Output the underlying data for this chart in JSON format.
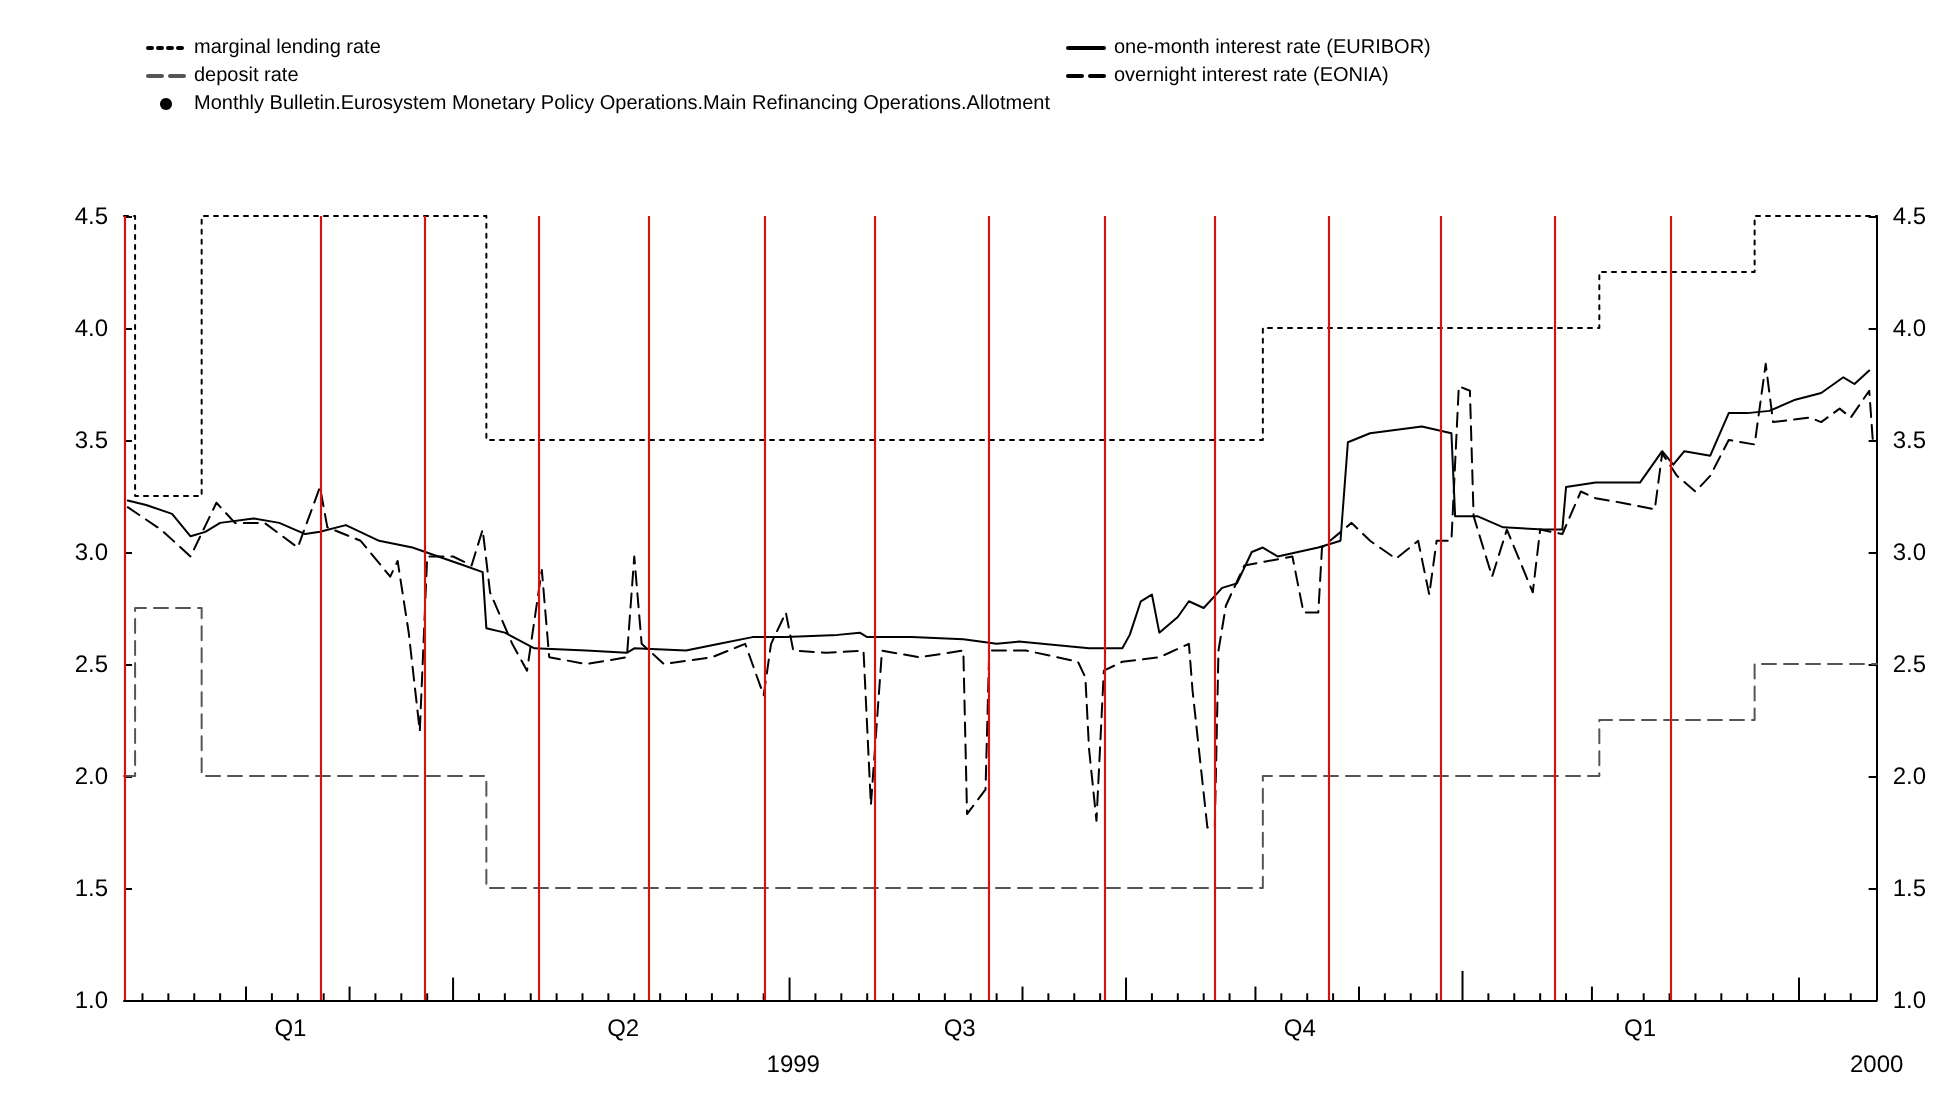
{
  "chart_data": {
    "type": "line",
    "xlim": [
      "1999-01-01",
      "2000-04-19"
    ],
    "xticks": [
      {
        "value": "1999-02-15",
        "label": "Q1"
      },
      {
        "value": "1999-05-16",
        "label": "Q2"
      },
      {
        "value": "1999-08-15",
        "label": "Q3"
      },
      {
        "value": "1999-11-15",
        "label": "Q4"
      },
      {
        "value": "2000-02-15",
        "label": "Q1"
      }
    ],
    "x2lim": [
      "1999-01-01",
      "2000-04-19"
    ],
    "x2ticks": [
      {
        "value": "1999-07-01",
        "label": "1999"
      },
      {
        "value": "2000-04-19",
        "label": "2000"
      }
    ],
    "ylim": [
      1.0,
      4.5
    ],
    "yticks": [
      {
        "value": 1,
        "label": "1.0"
      },
      {
        "value": 1.5,
        "label": "1.5"
      },
      {
        "value": 2,
        "label": "2.0"
      },
      {
        "value": 2.5,
        "label": "2.5"
      },
      {
        "value": 3,
        "label": "3.0"
      },
      {
        "value": 3.5,
        "label": "3.5"
      },
      {
        "value": 4,
        "label": "4.0"
      },
      {
        "value": 4.5,
        "label": "4.5"
      }
    ],
    "y2lim": [
      1.0,
      4.5
    ],
    "y2ticks": [
      {
        "value": 1,
        "label": "1.0"
      },
      {
        "value": 1.5,
        "label": "1.5"
      },
      {
        "value": 2,
        "label": "2.0"
      },
      {
        "value": 2.5,
        "label": "2.5"
      },
      {
        "value": 3,
        "label": "3.0"
      },
      {
        "value": 3.5,
        "label": "3.5"
      },
      {
        "value": 4,
        "label": "4.0"
      },
      {
        "value": 4.5,
        "label": "4.5"
      }
    ],
    "grid": false,
    "legend": "top",
    "series": [
      {
        "name": "marginal lending rate",
        "type": "step",
        "color": "#000000",
        "line_style": "dotted",
        "x": [
          "1999-01-01",
          "1999-01-04",
          "1999-01-22",
          "1999-04-09",
          "1999-11-05",
          "2000-02-04",
          "2000-03-17",
          "2000-04-19"
        ],
        "values": [
          4.5,
          3.25,
          4.5,
          3.5,
          4.0,
          4.25,
          4.5,
          4.5
        ]
      },
      {
        "name": "deposit rate",
        "type": "step",
        "color": "#555555",
        "line_style": "dashed",
        "x": [
          "1999-01-01",
          "1999-01-04",
          "1999-01-22",
          "1999-04-09",
          "1999-11-05",
          "2000-02-04",
          "2000-03-17",
          "2000-04-19"
        ],
        "values": [
          2.0,
          2.75,
          2.0,
          1.5,
          2.0,
          2.25,
          2.5,
          2.5
        ]
      },
      {
        "name": "Monthly Bulletin.Eurosystem Monetary Policy Operations.Main Refinancing Operations.Allotment",
        "type": "bar",
        "color": "#000000",
        "x": [
          "1999-01-06",
          "1999-01-13",
          "1999-01-20",
          "1999-01-27",
          "1999-02-03",
          "1999-02-10",
          "1999-02-17",
          "1999-02-24",
          "1999-03-03",
          "1999-03-10",
          "1999-03-17",
          "1999-03-24",
          "1999-03-31",
          "1999-04-07",
          "1999-04-14",
          "1999-04-21",
          "1999-04-28",
          "1999-05-05",
          "1999-05-12",
          "1999-05-19",
          "1999-05-26",
          "1999-06-02",
          "1999-06-09",
          "1999-06-16",
          "1999-06-23",
          "1999-06-30",
          "1999-07-07",
          "1999-07-14",
          "1999-07-21",
          "1999-07-28",
          "1999-08-04",
          "1999-08-11",
          "1999-08-18",
          "1999-08-25",
          "1999-09-01",
          "1999-09-08",
          "1999-09-15",
          "1999-09-22",
          "1999-09-29",
          "1999-10-06",
          "1999-10-13",
          "1999-10-20",
          "1999-10-27",
          "1999-11-03",
          "1999-11-10",
          "1999-11-17",
          "1999-11-24",
          "1999-12-01",
          "1999-12-08",
          "1999-12-15",
          "1999-12-22",
          "1999-12-29",
          "2000-01-05",
          "2000-01-12",
          "2000-01-19",
          "2000-01-26",
          "2000-02-02",
          "2000-02-09",
          "2000-02-16",
          "2000-02-23",
          "2000-03-01",
          "2000-03-08",
          "2000-03-15",
          "2000-03-22",
          "2000-03-29",
          "2000-04-05",
          "2000-04-12"
        ],
        "values": [
          1.03,
          1.03,
          1.03,
          1.03,
          1.06,
          1.03,
          1.03,
          1.03,
          1.06,
          1.03,
          1.03,
          1.03,
          1.1,
          1.03,
          1.03,
          1.03,
          1.03,
          1.03,
          1.03,
          1.03,
          1.03,
          1.03,
          1.03,
          1.03,
          1.03,
          1.1,
          1.03,
          1.03,
          1.03,
          1.03,
          1.03,
          1.03,
          1.03,
          1.03,
          1.06,
          1.03,
          1.03,
          1.03,
          1.1,
          1.03,
          1.03,
          1.03,
          1.03,
          1.06,
          1.03,
          1.03,
          1.03,
          1.06,
          1.03,
          1.03,
          1.03,
          1.13,
          1.03,
          1.03,
          1.03,
          1.03,
          1.06,
          1.03,
          1.03,
          1.03,
          1.03,
          1.03,
          1.03,
          1.03,
          1.1,
          1.03,
          1.03
        ]
      },
      {
        "name": "one-month interest rate (EURIBOR)",
        "color": "#000000",
        "line_style": "solid",
        "x": [
          "1999-01-02",
          "1999-01-07",
          "1999-01-14",
          "1999-01-19",
          "1999-01-23",
          "1999-01-27",
          "1999-02-05",
          "1999-02-12",
          "1999-02-19",
          "1999-02-23",
          "1999-03-02",
          "1999-03-11",
          "1999-03-20",
          "1999-03-27",
          "1999-04-03",
          "1999-04-08",
          "1999-04-09",
          "1999-04-14",
          "1999-04-22",
          "1999-05-06",
          "1999-05-17",
          "1999-05-19",
          "1999-06-02",
          "1999-06-11",
          "1999-06-20",
          "1999-06-29",
          "1999-07-13",
          "1999-07-19",
          "1999-07-21",
          "1999-08-02",
          "1999-08-16",
          "1999-08-25",
          "1999-08-31",
          "1999-09-19",
          "1999-09-28",
          "1999-09-30",
          "1999-10-03",
          "1999-10-06",
          "1999-10-08",
          "1999-10-13",
          "1999-10-16",
          "1999-10-20",
          "1999-10-25",
          "1999-10-29",
          "1999-11-02",
          "1999-11-05",
          "1999-11-09",
          "1999-11-20",
          "1999-11-26",
          "1999-11-28",
          "1999-12-04",
          "1999-12-18",
          "1999-12-26",
          "1999-12-27",
          "2000-01-02",
          "2000-01-09",
          "2000-01-20",
          "2000-01-25",
          "2000-01-26",
          "2000-02-03",
          "2000-02-15",
          "2000-02-21",
          "2000-02-24",
          "2000-02-27",
          "2000-03-05",
          "2000-03-10",
          "2000-03-15",
          "2000-03-21",
          "2000-03-28",
          "2000-04-04",
          "2000-04-10",
          "2000-04-13",
          "2000-04-17"
        ],
        "values": [
          3.23,
          3.21,
          3.17,
          3.07,
          3.09,
          3.13,
          3.15,
          3.13,
          3.08,
          3.09,
          3.12,
          3.05,
          3.02,
          2.98,
          2.94,
          2.91,
          2.66,
          2.64,
          2.57,
          2.56,
          2.55,
          2.57,
          2.56,
          2.59,
          2.62,
          2.62,
          2.63,
          2.64,
          2.62,
          2.62,
          2.61,
          2.59,
          2.6,
          2.57,
          2.57,
          2.63,
          2.78,
          2.81,
          2.64,
          2.71,
          2.78,
          2.75,
          2.84,
          2.86,
          3.0,
          3.02,
          2.98,
          3.02,
          3.05,
          3.49,
          3.53,
          3.56,
          3.53,
          3.16,
          3.16,
          3.11,
          3.1,
          3.1,
          3.29,
          3.31,
          3.31,
          3.45,
          3.39,
          3.45,
          3.43,
          3.62,
          3.62,
          3.63,
          3.68,
          3.71,
          3.78,
          3.75,
          3.81
        ]
      },
      {
        "name": "overnight interest rate (EONIA)",
        "color": "#000000",
        "line_style": "dashed",
        "x": [
          "1999-01-02",
          "1999-01-11",
          "1999-01-19",
          "1999-01-26",
          "1999-01-31",
          "1999-02-08",
          "1999-02-17",
          "1999-02-23",
          "1999-02-25",
          "1999-03-06",
          "1999-03-14",
          "1999-03-16",
          "1999-03-19",
          "1999-03-22",
          "1999-03-24",
          "1999-03-31",
          "1999-04-05",
          "1999-04-08",
          "1999-04-10",
          "1999-04-16",
          "1999-04-20",
          "1999-04-24",
          "1999-04-26",
          "1999-05-06",
          "1999-05-17",
          "1999-05-19",
          "1999-05-21",
          "1999-05-27",
          "1999-06-09",
          "1999-06-18",
          "1999-06-23",
          "1999-06-25",
          "1999-06-29",
          "1999-07-01",
          "1999-07-10",
          "1999-07-20",
          "1999-07-22",
          "1999-07-25",
          "1999-08-04",
          "1999-08-16",
          "1999-08-17",
          "1999-08-22",
          "1999-08-23",
          "1999-09-02",
          "1999-09-16",
          "1999-09-18",
          "1999-09-19",
          "1999-09-21",
          "1999-09-23",
          "1999-09-28",
          "1999-10-08",
          "1999-10-16",
          "1999-10-17",
          "1999-10-21",
          "1999-10-23",
          "1999-10-24",
          "1999-10-26",
          "1999-10-31",
          "1999-11-13",
          "1999-11-16",
          "1999-11-20",
          "1999-11-21",
          "1999-11-29",
          "1999-12-04",
          "1999-12-11",
          "1999-12-17",
          "1999-12-20",
          "1999-12-22",
          "1999-12-26",
          "1999-12-28",
          "1999-12-31",
          "2000-01-01",
          "2000-01-06",
          "2000-01-10",
          "2000-01-17",
          "2000-01-19",
          "2000-01-25",
          "2000-01-30",
          "2000-02-03",
          "2000-02-10",
          "2000-02-19",
          "2000-02-21",
          "2000-02-25",
          "2000-03-01",
          "2000-03-05",
          "2000-03-10",
          "2000-03-17",
          "2000-03-20",
          "2000-03-22",
          "2000-04-01",
          "2000-04-04",
          "2000-04-09",
          "2000-04-12",
          "2000-04-17",
          "2000-04-18"
        ],
        "values": [
          3.2,
          3.1,
          2.98,
          3.22,
          3.13,
          3.13,
          3.02,
          3.29,
          3.11,
          3.05,
          2.89,
          2.96,
          2.64,
          2.2,
          2.98,
          2.98,
          2.94,
          3.1,
          2.82,
          2.59,
          2.47,
          2.92,
          2.53,
          2.5,
          2.53,
          2.98,
          2.59,
          2.5,
          2.53,
          2.59,
          2.36,
          2.59,
          2.73,
          2.56,
          2.55,
          2.56,
          1.87,
          2.56,
          2.53,
          2.56,
          1.83,
          1.94,
          2.56,
          2.56,
          2.51,
          2.44,
          2.12,
          1.8,
          2.47,
          2.51,
          2.53,
          2.59,
          2.38,
          1.77,
          1.77,
          2.56,
          2.76,
          2.94,
          2.98,
          2.73,
          2.73,
          3.02,
          3.13,
          3.05,
          2.97,
          3.05,
          2.81,
          3.05,
          3.05,
          3.74,
          3.72,
          3.16,
          2.89,
          3.1,
          2.82,
          3.1,
          3.08,
          3.27,
          3.24,
          3.22,
          3.19,
          3.44,
          3.34,
          3.27,
          3.34,
          3.5,
          3.48,
          3.84,
          3.58,
          3.6,
          3.58,
          3.64,
          3.6,
          3.72,
          3.49
        ]
      }
    ],
    "ref_lines": [
      {
        "axis": "x",
        "value": "1999-01-01",
        "color": "#ff0000"
      },
      {
        "axis": "x",
        "value": "1999-02-23",
        "color": "#ff0000"
      },
      {
        "axis": "x",
        "value": "1999-03-23",
        "color": "#ff0000"
      },
      {
        "axis": "x",
        "value": "1999-04-23",
        "color": "#ff0000"
      },
      {
        "axis": "x",
        "value": "1999-05-23",
        "color": "#ff0000"
      },
      {
        "axis": "x",
        "value": "1999-06-23",
        "color": "#ff0000"
      },
      {
        "axis": "x",
        "value": "1999-07-23",
        "color": "#ff0000"
      },
      {
        "axis": "x",
        "value": "1999-08-23",
        "color": "#ff0000"
      },
      {
        "axis": "x",
        "value": "1999-09-23",
        "color": "#ff0000"
      },
      {
        "axis": "x",
        "value": "1999-10-23",
        "color": "#ff0000"
      },
      {
        "axis": "x",
        "value": "1999-11-23",
        "color": "#ff0000"
      },
      {
        "axis": "x",
        "value": "1999-12-23",
        "color": "#ff0000"
      },
      {
        "axis": "x",
        "value": "2000-01-23",
        "color": "#ff0000"
      },
      {
        "axis": "x",
        "value": "2000-02-23",
        "color": "#ff0000"
      }
    ]
  }
}
